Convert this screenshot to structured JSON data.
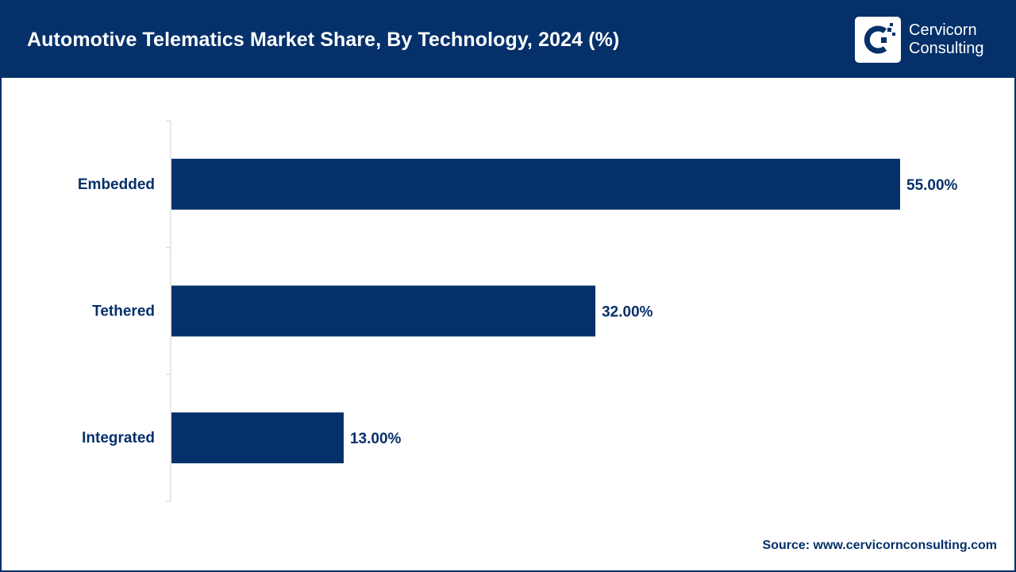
{
  "header": {
    "title": "Automotive Telematics Market Share, By Technology, 2024 (%)"
  },
  "brand": {
    "name_line1": "Cervicorn",
    "name_line2": "Consulting",
    "logo_icon": "cervicorn-c-logo-icon"
  },
  "colors": {
    "header_bg": "#05306a",
    "bar": "#05306a",
    "text": "#05306a",
    "axis": "#d0d0d0"
  },
  "chart_data": {
    "type": "bar",
    "orientation": "horizontal",
    "categories": [
      "Embedded",
      "Tethered",
      "Integrated"
    ],
    "values": [
      55.0,
      32.0,
      13.0
    ],
    "data_labels": [
      "55.00%",
      "32.00%",
      "13.00%"
    ],
    "xlim": [
      0,
      55
    ],
    "grid": false,
    "legend": "none"
  },
  "footer": {
    "source": "Source: www.cervicornconsulting.com"
  }
}
